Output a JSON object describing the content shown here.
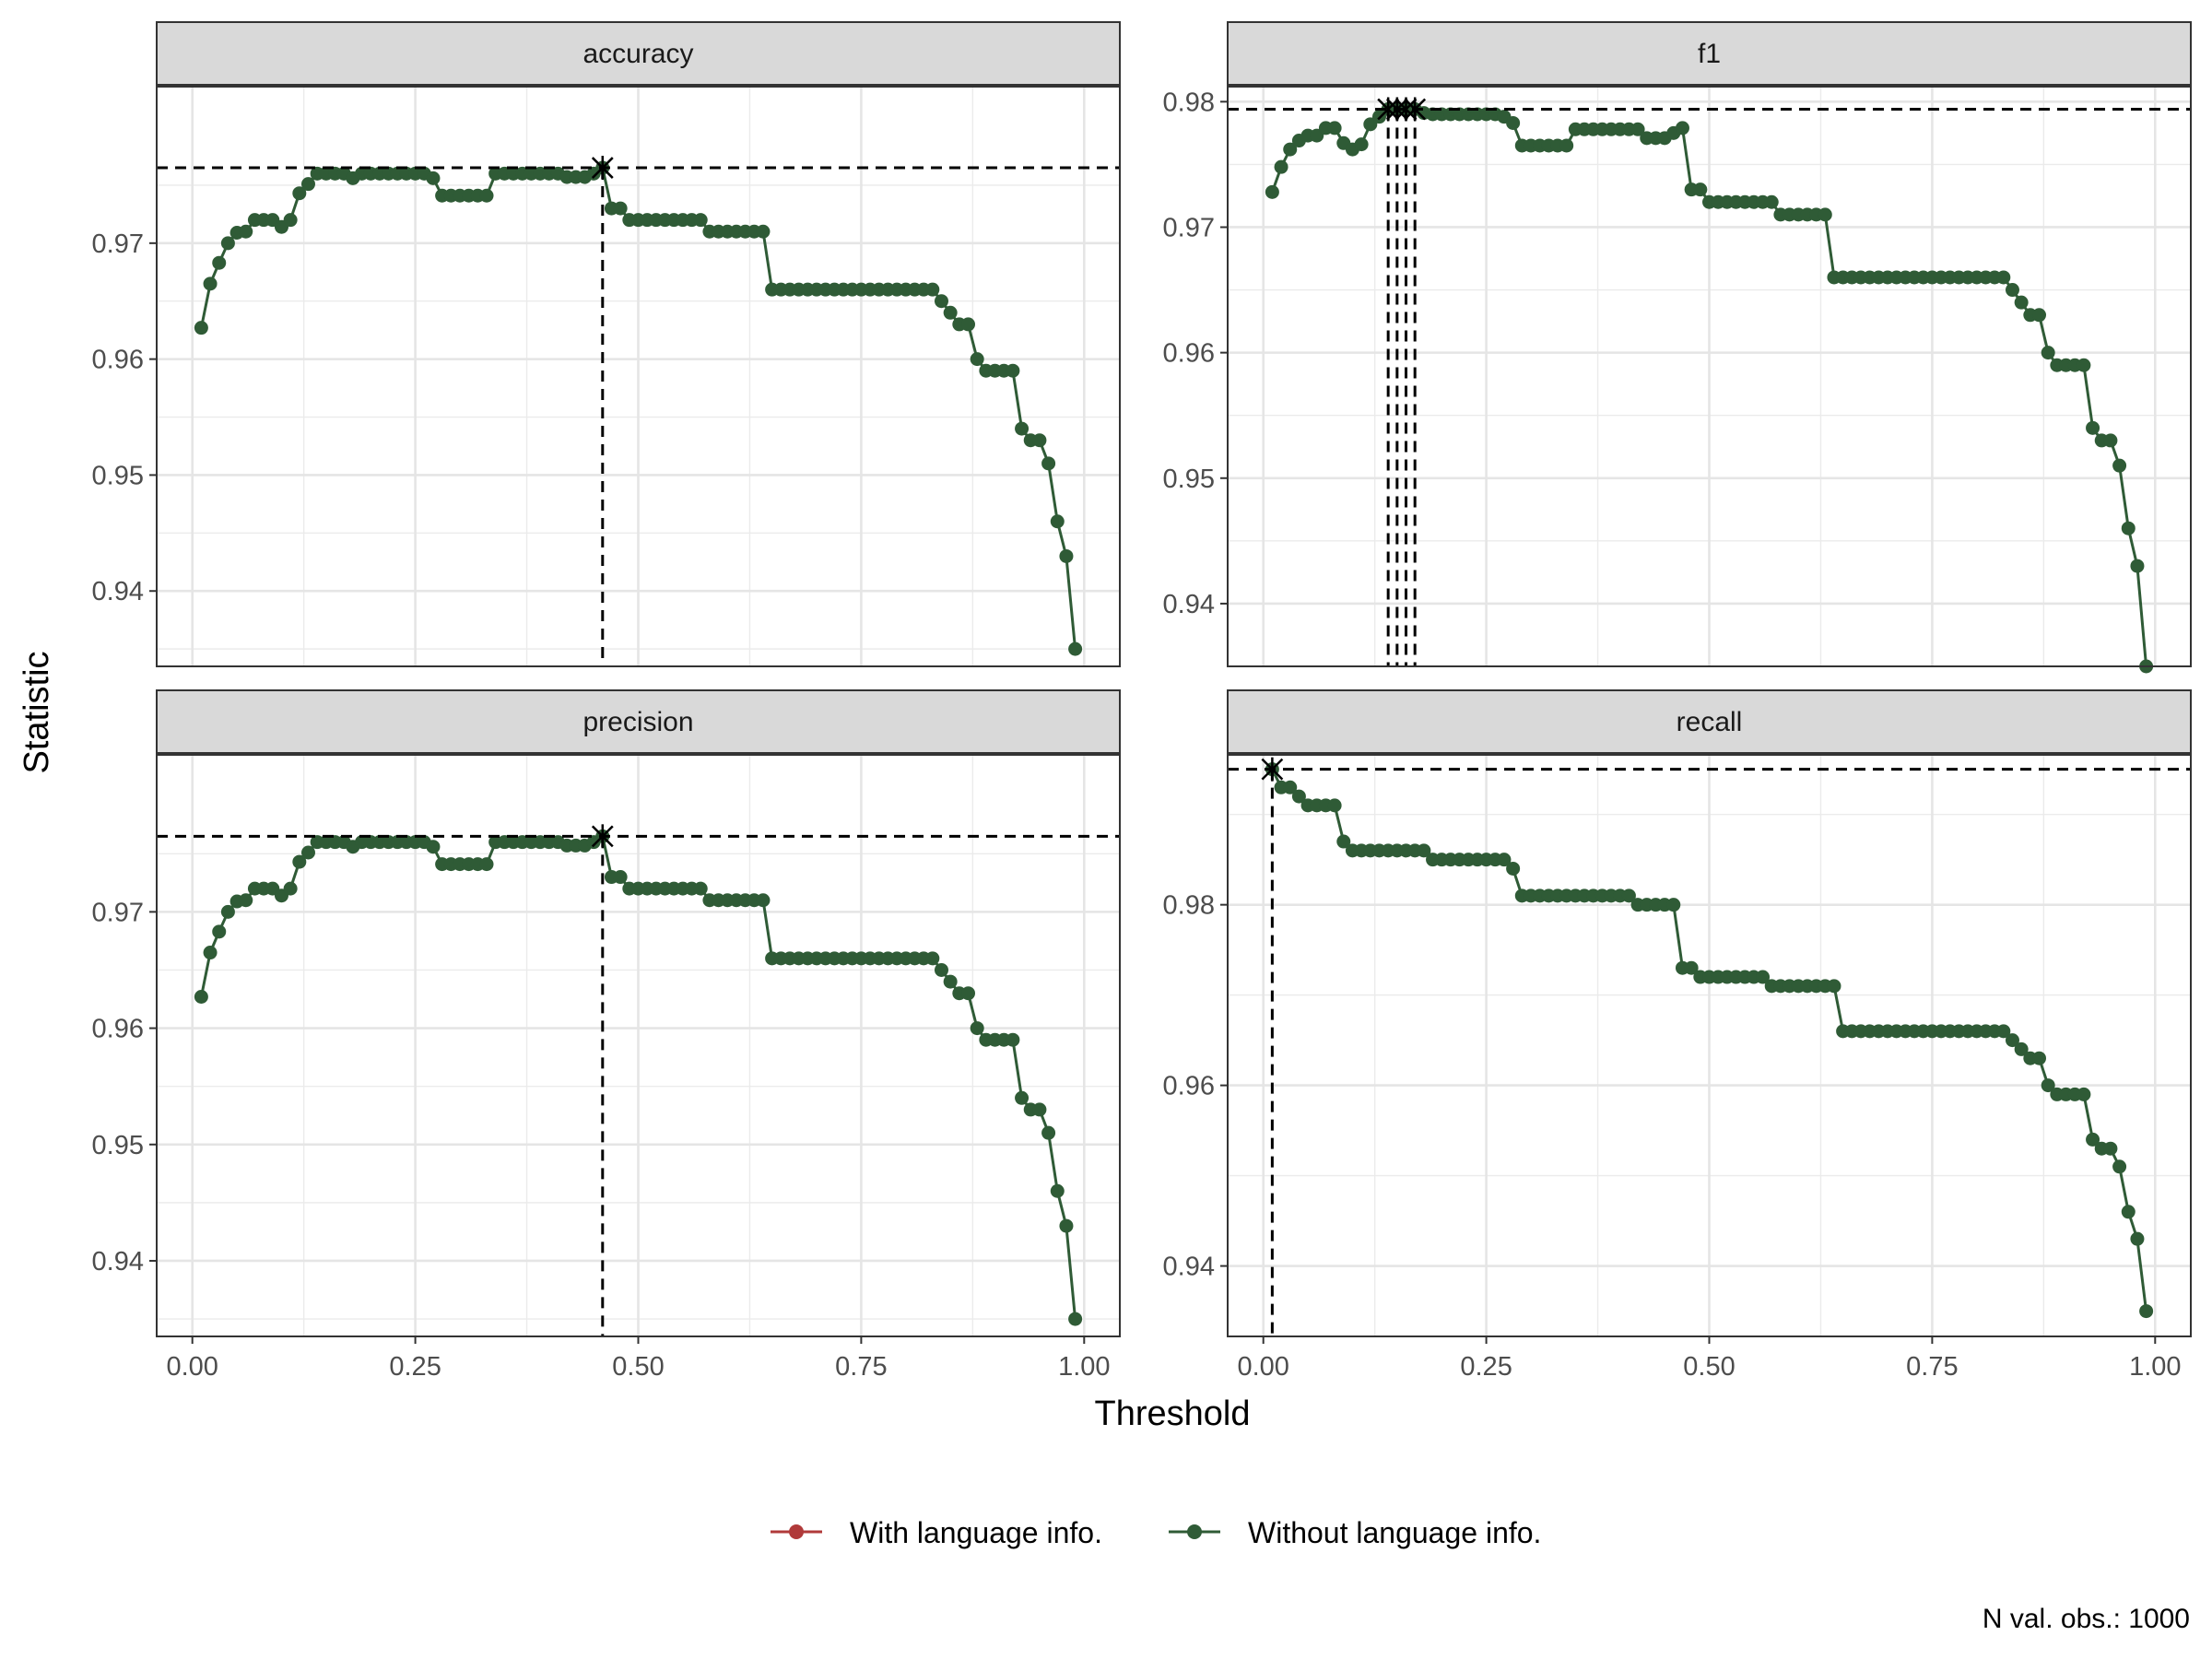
{
  "figure": {
    "x_label": "Threshold",
    "y_label": "Statistic",
    "caption": "N val. obs.: 1000",
    "legend": {
      "position": "bottom",
      "items": [
        {
          "label": "With language info.",
          "color": "#b03a3a"
        },
        {
          "label": "Without language info.",
          "color": "#2f5b36"
        }
      ]
    }
  },
  "chart_data": [
    {
      "type": "line",
      "panel": "accuracy",
      "xlim": [
        -0.04,
        1.04
      ],
      "ylim": [
        0.9335,
        0.9835
      ],
      "x_ticks": [
        "0.00",
        "0.25",
        "0.50",
        "0.75",
        "1.00"
      ],
      "y_ticks": [
        "0.94",
        "0.95",
        "0.96",
        "0.97"
      ],
      "optimum": {
        "x": [
          0.46
        ],
        "y": 0.9765
      },
      "series": [
        {
          "name": "Without language info.",
          "color": "#2f5b36",
          "x": [
            0.01,
            0.02,
            0.03,
            0.04,
            0.05,
            0.06,
            0.07,
            0.08,
            0.09,
            0.1,
            0.11,
            0.12,
            0.13,
            0.14,
            0.15,
            0.16,
            0.17,
            0.18,
            0.19,
            0.2,
            0.21,
            0.22,
            0.23,
            0.24,
            0.25,
            0.26,
            0.27,
            0.28,
            0.29,
            0.3,
            0.31,
            0.32,
            0.33,
            0.34,
            0.35,
            0.36,
            0.37,
            0.38,
            0.39,
            0.4,
            0.41,
            0.42,
            0.43,
            0.44,
            0.45,
            0.46,
            0.47,
            0.48,
            0.49,
            0.5,
            0.51,
            0.52,
            0.53,
            0.54,
            0.55,
            0.56,
            0.57,
            0.58,
            0.59,
            0.6,
            0.61,
            0.62,
            0.63,
            0.64,
            0.65,
            0.66,
            0.67,
            0.68,
            0.69,
            0.7,
            0.71,
            0.72,
            0.73,
            0.74,
            0.75,
            0.76,
            0.77,
            0.78,
            0.79,
            0.8,
            0.81,
            0.82,
            0.83,
            0.84,
            0.85,
            0.86,
            0.87,
            0.88,
            0.89,
            0.9,
            0.91,
            0.92,
            0.93,
            0.94,
            0.95,
            0.96,
            0.97,
            0.98,
            0.99
          ],
          "y": [
            0.9627,
            0.9665,
            0.9683,
            0.97,
            0.9709,
            0.971,
            0.972,
            0.972,
            0.972,
            0.9714,
            0.972,
            0.9743,
            0.9751,
            0.976,
            0.976,
            0.976,
            0.976,
            0.9756,
            0.976,
            0.976,
            0.976,
            0.976,
            0.976,
            0.976,
            0.976,
            0.976,
            0.9756,
            0.9741,
            0.9741,
            0.9741,
            0.9741,
            0.9741,
            0.9741,
            0.976,
            0.976,
            0.976,
            0.976,
            0.976,
            0.976,
            0.976,
            0.976,
            0.9757,
            0.9757,
            0.9757,
            0.976,
            0.9765,
            0.973,
            0.973,
            0.972,
            0.972,
            0.972,
            0.972,
            0.972,
            0.972,
            0.972,
            0.972,
            0.972,
            0.971,
            0.971,
            0.971,
            0.971,
            0.971,
            0.971,
            0.971,
            0.966,
            0.966,
            0.966,
            0.966,
            0.966,
            0.966,
            0.966,
            0.966,
            0.966,
            0.966,
            0.966,
            0.966,
            0.966,
            0.966,
            0.966,
            0.966,
            0.966,
            0.966,
            0.966,
            0.965,
            0.964,
            0.963,
            0.963,
            0.96,
            0.959,
            0.959,
            0.959,
            0.959,
            0.954,
            0.953,
            0.953,
            0.951,
            0.946,
            0.943,
            0.935
          ]
        }
      ]
    },
    {
      "type": "line",
      "panel": "f1",
      "xlim": [
        -0.04,
        1.04
      ],
      "ylim": [
        0.935,
        0.9812
      ],
      "x_ticks": [
        "0.00",
        "0.25",
        "0.50",
        "0.75",
        "1.00"
      ],
      "y_ticks": [
        "0.94",
        "0.95",
        "0.96",
        "0.97",
        "0.98"
      ],
      "optimum": {
        "x": [
          0.14,
          0.15,
          0.16,
          0.17
        ],
        "y": 0.9794
      },
      "series": [
        {
          "name": "Without language info.",
          "color": "#2f5b36",
          "x": [
            0.01,
            0.02,
            0.03,
            0.04,
            0.05,
            0.06,
            0.07,
            0.08,
            0.09,
            0.1,
            0.11,
            0.12,
            0.13,
            0.14,
            0.15,
            0.16,
            0.17,
            0.18,
            0.19,
            0.2,
            0.21,
            0.22,
            0.23,
            0.24,
            0.25,
            0.26,
            0.27,
            0.28,
            0.29,
            0.3,
            0.31,
            0.32,
            0.33,
            0.34,
            0.35,
            0.36,
            0.37,
            0.38,
            0.39,
            0.4,
            0.41,
            0.42,
            0.43,
            0.44,
            0.45,
            0.46,
            0.47,
            0.48,
            0.49,
            0.5,
            0.51,
            0.52,
            0.53,
            0.54,
            0.55,
            0.56,
            0.57,
            0.58,
            0.59,
            0.6,
            0.61,
            0.62,
            0.63,
            0.64,
            0.65,
            0.66,
            0.67,
            0.68,
            0.69,
            0.7,
            0.71,
            0.72,
            0.73,
            0.74,
            0.75,
            0.76,
            0.77,
            0.78,
            0.79,
            0.8,
            0.81,
            0.82,
            0.83,
            0.84,
            0.85,
            0.86,
            0.87,
            0.88,
            0.89,
            0.9,
            0.91,
            0.92,
            0.93,
            0.94,
            0.95,
            0.96,
            0.97,
            0.98,
            0.99
          ],
          "y": [
            0.9728,
            0.9748,
            0.9762,
            0.9769,
            0.9773,
            0.9773,
            0.9779,
            0.9779,
            0.9767,
            0.9762,
            0.9766,
            0.9782,
            0.9788,
            0.9794,
            0.9794,
            0.9794,
            0.9794,
            0.9791,
            0.979,
            0.979,
            0.979,
            0.979,
            0.979,
            0.979,
            0.979,
            0.979,
            0.9788,
            0.9783,
            0.9765,
            0.9765,
            0.9765,
            0.9765,
            0.9765,
            0.9765,
            0.9778,
            0.9778,
            0.9778,
            0.9778,
            0.9778,
            0.9778,
            0.9778,
            0.9778,
            0.9771,
            0.9771,
            0.9771,
            0.9775,
            0.9779,
            0.973,
            0.973,
            0.972,
            0.972,
            0.972,
            0.972,
            0.972,
            0.972,
            0.972,
            0.972,
            0.971,
            0.971,
            0.971,
            0.971,
            0.971,
            0.971,
            0.966,
            0.966,
            0.966,
            0.966,
            0.966,
            0.966,
            0.966,
            0.966,
            0.966,
            0.966,
            0.966,
            0.966,
            0.966,
            0.966,
            0.966,
            0.966,
            0.966,
            0.966,
            0.966,
            0.966,
            0.965,
            0.964,
            0.963,
            0.963,
            0.96,
            0.959,
            0.959,
            0.959,
            0.959,
            0.954,
            0.953,
            0.953,
            0.951,
            0.946,
            0.943,
            0.935
          ]
        }
      ]
    },
    {
      "type": "line",
      "panel": "precision",
      "xlim": [
        -0.04,
        1.04
      ],
      "ylim": [
        0.9335,
        0.9835
      ],
      "x_ticks": [
        "0.00",
        "0.25",
        "0.50",
        "0.75",
        "1.00"
      ],
      "y_ticks": [
        "0.94",
        "0.95",
        "0.96",
        "0.97"
      ],
      "optimum": {
        "x": [
          0.46
        ],
        "y": 0.9765
      },
      "series": [
        {
          "name": "Without language info.",
          "color": "#2f5b36",
          "x": [
            0.01,
            0.02,
            0.03,
            0.04,
            0.05,
            0.06,
            0.07,
            0.08,
            0.09,
            0.1,
            0.11,
            0.12,
            0.13,
            0.14,
            0.15,
            0.16,
            0.17,
            0.18,
            0.19,
            0.2,
            0.21,
            0.22,
            0.23,
            0.24,
            0.25,
            0.26,
            0.27,
            0.28,
            0.29,
            0.3,
            0.31,
            0.32,
            0.33,
            0.34,
            0.35,
            0.36,
            0.37,
            0.38,
            0.39,
            0.4,
            0.41,
            0.42,
            0.43,
            0.44,
            0.45,
            0.46,
            0.47,
            0.48,
            0.49,
            0.5,
            0.51,
            0.52,
            0.53,
            0.54,
            0.55,
            0.56,
            0.57,
            0.58,
            0.59,
            0.6,
            0.61,
            0.62,
            0.63,
            0.64,
            0.65,
            0.66,
            0.67,
            0.68,
            0.69,
            0.7,
            0.71,
            0.72,
            0.73,
            0.74,
            0.75,
            0.76,
            0.77,
            0.78,
            0.79,
            0.8,
            0.81,
            0.82,
            0.83,
            0.84,
            0.85,
            0.86,
            0.87,
            0.88,
            0.89,
            0.9,
            0.91,
            0.92,
            0.93,
            0.94,
            0.95,
            0.96,
            0.97,
            0.98,
            0.99
          ],
          "y": [
            0.9627,
            0.9665,
            0.9683,
            0.97,
            0.9709,
            0.971,
            0.972,
            0.972,
            0.972,
            0.9714,
            0.972,
            0.9743,
            0.9751,
            0.976,
            0.976,
            0.976,
            0.976,
            0.9756,
            0.976,
            0.976,
            0.976,
            0.976,
            0.976,
            0.976,
            0.976,
            0.976,
            0.9756,
            0.9741,
            0.9741,
            0.9741,
            0.9741,
            0.9741,
            0.9741,
            0.976,
            0.976,
            0.976,
            0.976,
            0.976,
            0.976,
            0.976,
            0.976,
            0.9757,
            0.9757,
            0.9757,
            0.976,
            0.9765,
            0.973,
            0.973,
            0.972,
            0.972,
            0.972,
            0.972,
            0.972,
            0.972,
            0.972,
            0.972,
            0.972,
            0.971,
            0.971,
            0.971,
            0.971,
            0.971,
            0.971,
            0.971,
            0.966,
            0.966,
            0.966,
            0.966,
            0.966,
            0.966,
            0.966,
            0.966,
            0.966,
            0.966,
            0.966,
            0.966,
            0.966,
            0.966,
            0.966,
            0.966,
            0.966,
            0.966,
            0.966,
            0.965,
            0.964,
            0.963,
            0.963,
            0.96,
            0.959,
            0.959,
            0.959,
            0.959,
            0.954,
            0.953,
            0.953,
            0.951,
            0.946,
            0.943,
            0.935
          ]
        }
      ]
    },
    {
      "type": "line",
      "panel": "recall",
      "xlim": [
        -0.04,
        1.04
      ],
      "ylim": [
        0.9322,
        0.9966
      ],
      "x_ticks": [
        "0.00",
        "0.25",
        "0.50",
        "0.75",
        "1.00"
      ],
      "y_ticks": [
        "0.94",
        "0.96",
        "0.98"
      ],
      "optimum": {
        "x": [
          0.01
        ],
        "y": 0.995
      },
      "series": [
        {
          "name": "Without language info.",
          "color": "#2f5b36",
          "x": [
            0.01,
            0.02,
            0.03,
            0.04,
            0.05,
            0.06,
            0.07,
            0.08,
            0.09,
            0.1,
            0.11,
            0.12,
            0.13,
            0.14,
            0.15,
            0.16,
            0.17,
            0.18,
            0.19,
            0.2,
            0.21,
            0.22,
            0.23,
            0.24,
            0.25,
            0.26,
            0.27,
            0.28,
            0.29,
            0.3,
            0.31,
            0.32,
            0.33,
            0.34,
            0.35,
            0.36,
            0.37,
            0.38,
            0.39,
            0.4,
            0.41,
            0.42,
            0.43,
            0.44,
            0.45,
            0.46,
            0.47,
            0.48,
            0.49,
            0.5,
            0.51,
            0.52,
            0.53,
            0.54,
            0.55,
            0.56,
            0.57,
            0.58,
            0.59,
            0.6,
            0.61,
            0.62,
            0.63,
            0.64,
            0.65,
            0.66,
            0.67,
            0.68,
            0.69,
            0.7,
            0.71,
            0.72,
            0.73,
            0.74,
            0.75,
            0.76,
            0.77,
            0.78,
            0.79,
            0.8,
            0.81,
            0.82,
            0.83,
            0.84,
            0.85,
            0.86,
            0.87,
            0.88,
            0.89,
            0.9,
            0.91,
            0.92,
            0.93,
            0.94,
            0.95,
            0.96,
            0.97,
            0.98,
            0.99
          ],
          "y": [
            0.995,
            0.993,
            0.993,
            0.992,
            0.991,
            0.991,
            0.991,
            0.991,
            0.987,
            0.986,
            0.986,
            0.986,
            0.986,
            0.986,
            0.986,
            0.986,
            0.986,
            0.986,
            0.985,
            0.985,
            0.985,
            0.985,
            0.985,
            0.985,
            0.985,
            0.985,
            0.985,
            0.984,
            0.981,
            0.981,
            0.981,
            0.981,
            0.981,
            0.981,
            0.981,
            0.981,
            0.981,
            0.981,
            0.981,
            0.981,
            0.981,
            0.98,
            0.98,
            0.98,
            0.98,
            0.98,
            0.973,
            0.973,
            0.972,
            0.972,
            0.972,
            0.972,
            0.972,
            0.972,
            0.972,
            0.972,
            0.971,
            0.971,
            0.971,
            0.971,
            0.971,
            0.971,
            0.971,
            0.971,
            0.966,
            0.966,
            0.966,
            0.966,
            0.966,
            0.966,
            0.966,
            0.966,
            0.966,
            0.966,
            0.966,
            0.966,
            0.966,
            0.966,
            0.966,
            0.966,
            0.966,
            0.966,
            0.966,
            0.965,
            0.964,
            0.963,
            0.963,
            0.96,
            0.959,
            0.959,
            0.959,
            0.959,
            0.954,
            0.953,
            0.953,
            0.951,
            0.946,
            0.943,
            0.935
          ]
        }
      ]
    }
  ]
}
